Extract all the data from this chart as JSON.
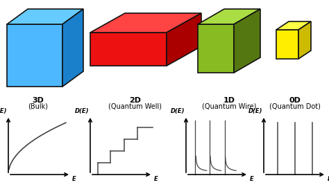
{
  "labels_3d": [
    "3D",
    "(Bulk)"
  ],
  "labels_2d": [
    "2D",
    "(Quantum Well)"
  ],
  "labels_1d": [
    "1D",
    "(Quantum Wire)"
  ],
  "labels_0d": [
    "0D",
    "(Quantum Dot)"
  ],
  "cube_3d_face": "#4db8ff",
  "cube_3d_top": "#66ccff",
  "cube_3d_side": "#1a80cc",
  "cube_2d_face": "#ee1111",
  "cube_2d_top": "#ff4444",
  "cube_2d_side": "#aa0000",
  "cube_1d_face": "#88bb22",
  "cube_1d_top": "#aadd44",
  "cube_1d_side": "#557711",
  "cube_0d_face": "#ffee00",
  "cube_0d_top": "#ffff44",
  "cube_0d_side": "#ccbb00",
  "edge_color": "#111111",
  "graph_line_color": "#444444",
  "bg_color": "#ffffff"
}
